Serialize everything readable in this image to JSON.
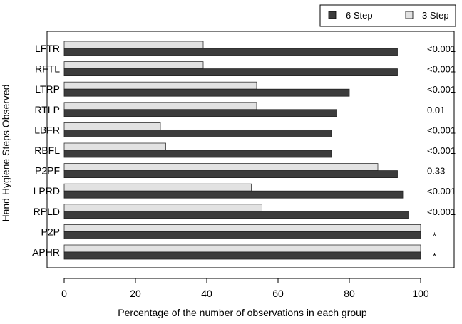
{
  "chart_data": {
    "type": "bar",
    "orientation": "horizontal",
    "title": "",
    "xlabel": "Percentage of the number of observations in each group",
    "ylabel": "Hand Hygiene Steps Observed",
    "xlim": [
      0,
      100
    ],
    "xticks": [
      "0",
      "20",
      "40",
      "60",
      "80",
      "100"
    ],
    "categories": [
      "LFTR",
      "RFTL",
      "LTRP",
      "RTLP",
      "LBFR",
      "RBFL",
      "P2PF",
      "LPRD",
      "RPLD",
      "P2P",
      "APHR"
    ],
    "series": [
      {
        "name": "6 Step",
        "color": "#3c3c3c",
        "values": [
          93.5,
          93.5,
          80,
          76.5,
          75,
          75,
          93.5,
          95,
          96.5,
          100,
          100
        ]
      },
      {
        "name": "3 Step",
        "color": "#e2e2e2",
        "values": [
          39,
          39,
          54,
          54,
          27,
          28.5,
          88,
          52.5,
          55.5,
          100,
          100
        ]
      }
    ],
    "p_values": [
      "<0.001",
      "<0.001",
      "<0.001",
      "0.01",
      "<0.001",
      "<0.001",
      "0.33",
      "<0.001",
      "<0.001",
      "*",
      "*"
    ],
    "legend": {
      "placement": "top-right",
      "entries": [
        "6 Step",
        "3 Step"
      ]
    },
    "grid": false
  }
}
